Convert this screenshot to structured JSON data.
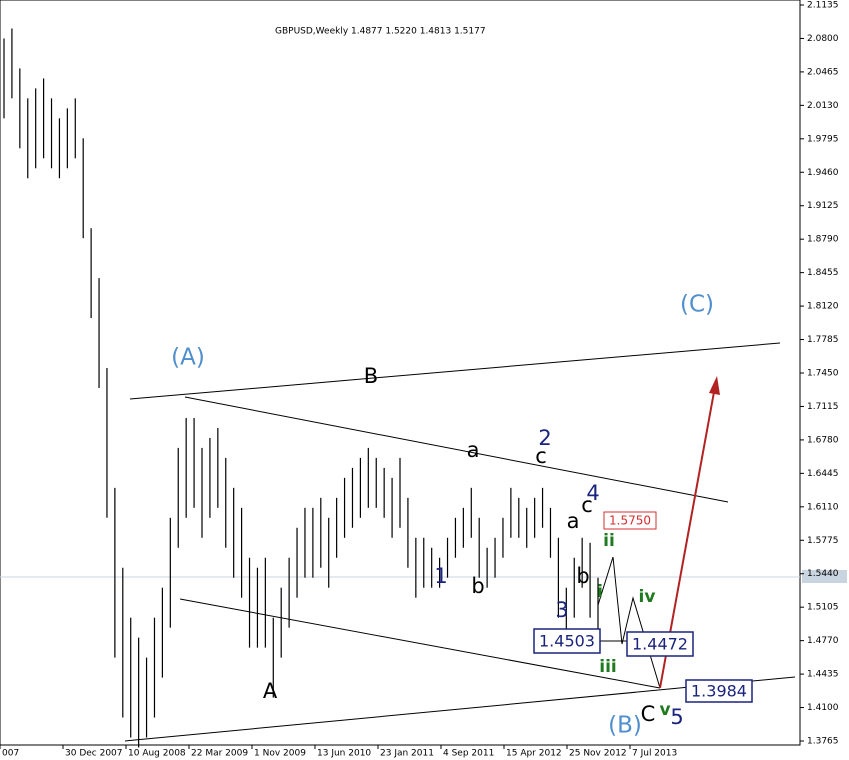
{
  "chart_data": {
    "type": "ohlc",
    "title": "GBPUSD,Weekly  1.4877 1.5220 1.4813 1.5177",
    "categories": [
      "007",
      "30 Dec 2007",
      "10 Aug 2008",
      "22 Mar 2009",
      "1 Nov 2009",
      "13 Jun 2010",
      "23 Jan 2011",
      "4 Sep 2011",
      "15 Apr 2012",
      "25 Nov 2012",
      "7 Jul 2013"
    ],
    "highs": [
      2.08,
      2.09,
      2.05,
      2.02,
      2.03,
      2.04,
      2.02,
      2.0,
      2.01,
      2.02,
      1.98,
      1.89,
      1.84,
      1.75,
      1.63,
      1.55,
      1.5,
      1.48,
      1.46,
      1.5,
      1.53,
      1.6,
      1.67,
      1.7,
      1.7,
      1.67,
      1.68,
      1.69,
      1.66,
      1.63,
      1.61,
      1.56,
      1.55,
      1.56,
      1.5,
      1.53,
      1.56,
      1.59,
      1.61,
      1.61,
      1.62,
      1.6,
      1.62,
      1.64,
      1.65,
      1.66,
      1.67,
      1.66,
      1.65,
      1.64,
      1.66,
      1.62,
      1.58,
      1.58,
      1.57,
      1.56,
      1.58,
      1.6,
      1.61,
      1.63,
      1.6,
      1.57,
      1.58,
      1.6,
      1.63,
      1.62,
      1.61,
      1.62,
      1.63,
      1.61,
      1.58,
      1.53,
      1.56,
      1.58,
      1.575,
      1.54
    ],
    "lows": [
      2.0,
      2.02,
      1.97,
      1.94,
      1.95,
      1.96,
      1.95,
      1.94,
      1.95,
      1.96,
      1.88,
      1.8,
      1.73,
      1.6,
      1.46,
      1.4,
      1.38,
      1.37,
      1.38,
      1.4,
      1.44,
      1.49,
      1.57,
      1.6,
      1.61,
      1.58,
      1.6,
      1.61,
      1.57,
      1.54,
      1.52,
      1.47,
      1.47,
      1.47,
      1.42,
      1.46,
      1.49,
      1.52,
      1.54,
      1.54,
      1.55,
      1.53,
      1.56,
      1.58,
      1.59,
      1.6,
      1.61,
      1.61,
      1.6,
      1.58,
      1.59,
      1.55,
      1.52,
      1.53,
      1.53,
      1.53,
      1.54,
      1.56,
      1.57,
      1.58,
      1.54,
      1.53,
      1.54,
      1.56,
      1.58,
      1.58,
      1.57,
      1.58,
      1.59,
      1.56,
      1.5,
      1.48,
      1.5,
      1.53,
      1.5,
      1.48
    ],
    "ylim": [
      1.3725,
      2.1185
    ],
    "yticks": [
      2.1135,
      {
        "value": 2.08,
        "label": "2.0800"
      },
      2.0465,
      {
        "value": 2.013,
        "label": "2.0130"
      },
      1.9795,
      {
        "value": 1.946,
        "label": "1.9460"
      },
      1.9125,
      {
        "value": 1.879,
        "label": "1.8790"
      },
      1.8455,
      {
        "value": 1.812,
        "label": "1.8120"
      },
      1.7785,
      {
        "value": 1.745,
        "label": "1.7450"
      },
      1.7115,
      {
        "value": 1.678,
        "label": "1.6780"
      },
      1.6445,
      {
        "value": 1.611,
        "label": "1.6110"
      },
      1.5775,
      {
        "value": 1.544,
        "label": "1.5440"
      },
      1.5105,
      {
        "value": 1.477,
        "label": "1.4770"
      },
      1.4435,
      {
        "value": 1.41,
        "label": "1.4100"
      },
      1.3765
    ],
    "annotations": [
      "(A)",
      "(B)",
      "(C)",
      "A",
      "B",
      "C",
      "a",
      "b",
      "c",
      "a",
      "b",
      "c",
      "1",
      "2",
      "3",
      "4",
      "5",
      "i",
      "ii",
      "iii",
      "iv",
      "v",
      "1.5750",
      "1.4503",
      "1.4472",
      "1.3984"
    ]
  }
}
